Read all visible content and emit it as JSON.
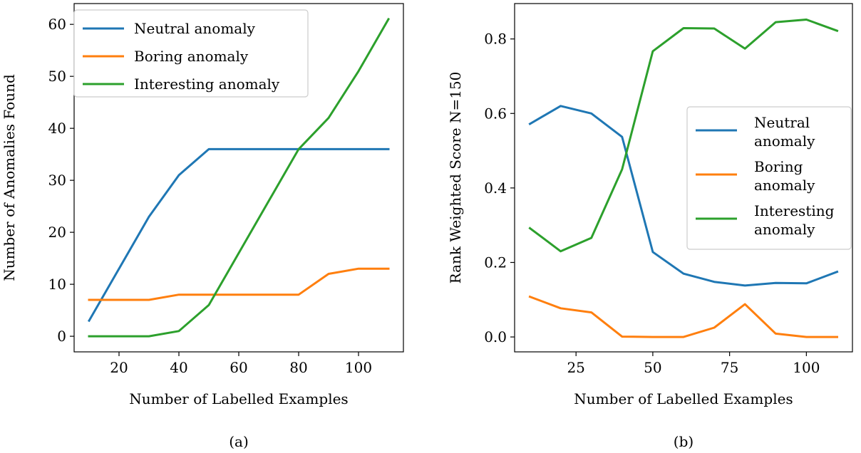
{
  "chart_data": [
    {
      "type": "line",
      "caption": "(a)",
      "xlabel": "Number of Labelled Examples",
      "ylabel": "Number of Anomalies Found",
      "xlim": [
        5,
        115
      ],
      "ylim": [
        -3,
        64
      ],
      "xticks": [
        20,
        40,
        60,
        80,
        100
      ],
      "yticks": [
        0,
        10,
        20,
        30,
        40,
        50,
        60
      ],
      "legend_position": "top-left",
      "x": [
        10,
        20,
        30,
        40,
        50,
        60,
        70,
        80,
        90,
        100,
        110
      ],
      "series": [
        {
          "name": "Neutral anomaly",
          "color": "#1f77b4",
          "values": [
            3,
            13,
            23,
            31,
            36,
            36,
            36,
            36,
            36,
            36,
            36
          ]
        },
        {
          "name": "Boring anomaly",
          "color": "#ff7f0e",
          "values": [
            7,
            7,
            7,
            8,
            8,
            8,
            8,
            8,
            12,
            13,
            13
          ]
        },
        {
          "name": "Interesting anomaly",
          "color": "#2ca02c",
          "values": [
            0,
            0,
            0,
            1,
            6,
            16,
            26,
            36,
            42,
            51,
            61
          ]
        }
      ]
    },
    {
      "type": "line",
      "caption": "(b)",
      "xlabel": "Number of Labelled Examples",
      "ylabel": "Rank Weighted Score N=150",
      "xlim": [
        5,
        115
      ],
      "ylim": [
        -0.04,
        0.895
      ],
      "xticks": [
        25,
        50,
        75,
        100
      ],
      "yticks": [
        0.0,
        0.2,
        0.4,
        0.6,
        0.8
      ],
      "ytick_labels": [
        "0.0",
        "0.2",
        "0.4",
        "0.6",
        "0.8"
      ],
      "legend_position": "center-right",
      "x": [
        10,
        20,
        30,
        40,
        50,
        60,
        70,
        80,
        90,
        100,
        110
      ],
      "series": [
        {
          "name": "Neutral anomaly",
          "legend_lines": [
            "Neutral",
            "anomaly"
          ],
          "color": "#1f77b4",
          "values": [
            0.572,
            0.62,
            0.6,
            0.537,
            0.228,
            0.17,
            0.148,
            0.138,
            0.145,
            0.144,
            0.175
          ]
        },
        {
          "name": "Boring anomaly",
          "legend_lines": [
            "Boring",
            "anomaly"
          ],
          "color": "#ff7f0e",
          "values": [
            0.108,
            0.077,
            0.066,
            0.001,
            0.0,
            0.0,
            0.025,
            0.088,
            0.009,
            0.0,
            0.0
          ]
        },
        {
          "name": "Interesting anomaly",
          "legend_lines": [
            "Interesting",
            "anomaly"
          ],
          "color": "#2ca02c",
          "values": [
            0.292,
            0.23,
            0.266,
            0.45,
            0.767,
            0.829,
            0.828,
            0.774,
            0.845,
            0.852,
            0.822
          ]
        }
      ]
    }
  ]
}
